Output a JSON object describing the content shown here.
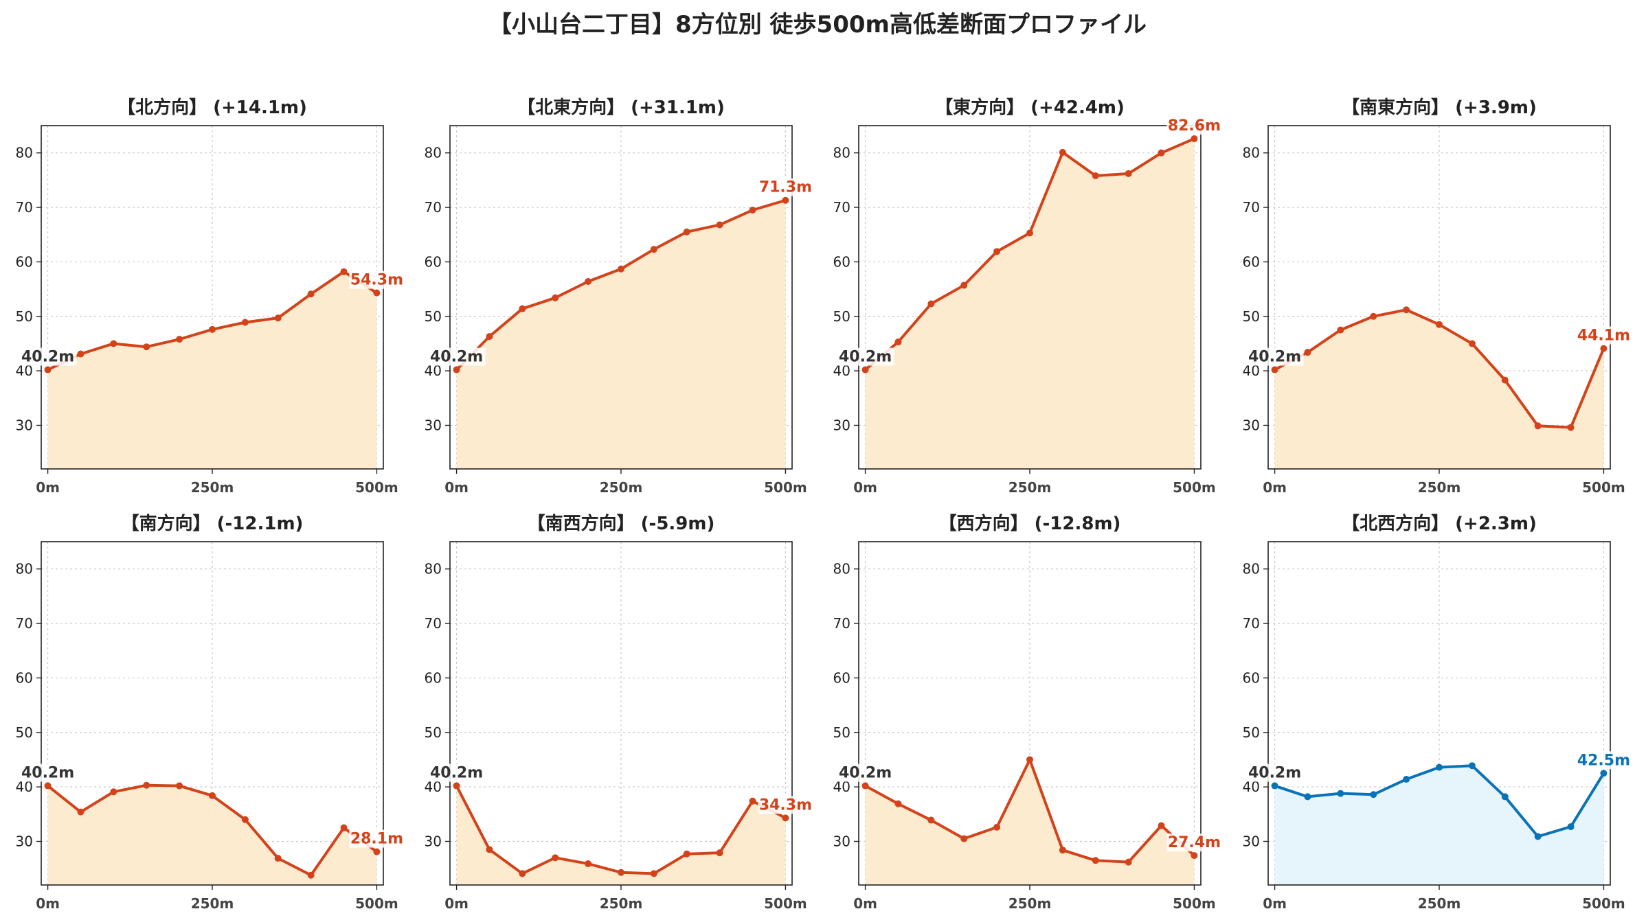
{
  "title": "【小山台二丁目】8方位別 徒歩500m高低差断面プロファイル",
  "colors": {
    "up_line": "#d4421a",
    "up_fill": "#fdebd0",
    "down_line": "#0a73b8",
    "down_fill": "#e6f4fb",
    "start_label": "#333333"
  },
  "chart_data": [
    {
      "type": "area",
      "title": "【北方向】 (+14.1m)",
      "theme": "up",
      "x": [
        0,
        50,
        100,
        150,
        200,
        250,
        300,
        350,
        400,
        450,
        500
      ],
      "y": [
        40.2,
        43.1,
        45.0,
        44.4,
        45.8,
        47.6,
        48.9,
        49.7,
        54.1,
        58.2,
        54.3
      ],
      "start_label": "40.2m",
      "end_label": "54.3m",
      "xticks": [
        0,
        250,
        500
      ],
      "xtick_labels": [
        "0m",
        "250m",
        "500m"
      ],
      "yticks": [
        30,
        40,
        50,
        60,
        70,
        80
      ],
      "xlim": [
        -10,
        510
      ],
      "ylim": [
        22,
        85
      ],
      "grid": true
    },
    {
      "type": "area",
      "title": "【北東方向】 (+31.1m)",
      "theme": "up",
      "x": [
        0,
        50,
        100,
        150,
        200,
        250,
        300,
        350,
        400,
        450,
        500
      ],
      "y": [
        40.2,
        46.3,
        51.4,
        53.4,
        56.4,
        58.7,
        62.3,
        65.5,
        66.8,
        69.5,
        71.3
      ],
      "start_label": "40.2m",
      "end_label": "71.3m",
      "xticks": [
        0,
        250,
        500
      ],
      "xtick_labels": [
        "0m",
        "250m",
        "500m"
      ],
      "yticks": [
        30,
        40,
        50,
        60,
        70,
        80
      ],
      "xlim": [
        -10,
        510
      ],
      "ylim": [
        22,
        85
      ],
      "grid": true
    },
    {
      "type": "area",
      "title": "【東方向】 (+42.4m)",
      "theme": "up",
      "x": [
        0,
        50,
        100,
        150,
        200,
        250,
        300,
        350,
        400,
        450,
        500
      ],
      "y": [
        40.2,
        45.3,
        52.3,
        55.7,
        61.9,
        65.3,
        80.1,
        75.8,
        76.2,
        80.0,
        82.6
      ],
      "start_label": "40.2m",
      "end_label": "82.6m",
      "xticks": [
        0,
        250,
        500
      ],
      "xtick_labels": [
        "0m",
        "250m",
        "500m"
      ],
      "yticks": [
        30,
        40,
        50,
        60,
        70,
        80
      ],
      "xlim": [
        -10,
        510
      ],
      "ylim": [
        22,
        85
      ],
      "grid": true
    },
    {
      "type": "area",
      "title": "【南東方向】 (+3.9m)",
      "theme": "up",
      "x": [
        0,
        50,
        100,
        150,
        200,
        250,
        300,
        350,
        400,
        450,
        500
      ],
      "y": [
        40.2,
        43.4,
        47.5,
        50.0,
        51.2,
        48.5,
        45.0,
        38.3,
        29.9,
        29.6,
        44.1
      ],
      "start_label": "40.2m",
      "end_label": "44.1m",
      "xticks": [
        0,
        250,
        500
      ],
      "xtick_labels": [
        "0m",
        "250m",
        "500m"
      ],
      "yticks": [
        30,
        40,
        50,
        60,
        70,
        80
      ],
      "xlim": [
        -10,
        510
      ],
      "ylim": [
        22,
        85
      ],
      "grid": true
    },
    {
      "type": "area",
      "title": "【南方向】 (-12.1m)",
      "theme": "up",
      "x": [
        0,
        50,
        100,
        150,
        200,
        250,
        300,
        350,
        400,
        450,
        500
      ],
      "y": [
        40.2,
        35.4,
        39.1,
        40.3,
        40.2,
        38.4,
        34.0,
        26.9,
        23.8,
        32.5,
        28.1
      ],
      "start_label": "40.2m",
      "end_label": "28.1m",
      "xticks": [
        0,
        250,
        500
      ],
      "xtick_labels": [
        "0m",
        "250m",
        "500m"
      ],
      "yticks": [
        30,
        40,
        50,
        60,
        70,
        80
      ],
      "xlim": [
        -10,
        510
      ],
      "ylim": [
        22,
        85
      ],
      "grid": true
    },
    {
      "type": "area",
      "title": "【南西方向】 (-5.9m)",
      "theme": "up",
      "x": [
        0,
        50,
        100,
        150,
        200,
        250,
        300,
        350,
        400,
        450,
        500
      ],
      "y": [
        40.2,
        28.5,
        24.1,
        27.0,
        25.9,
        24.3,
        24.1,
        27.7,
        27.9,
        37.4,
        34.3
      ],
      "start_label": "40.2m",
      "end_label": "34.3m",
      "xticks": [
        0,
        250,
        500
      ],
      "xtick_labels": [
        "0m",
        "250m",
        "500m"
      ],
      "yticks": [
        30,
        40,
        50,
        60,
        70,
        80
      ],
      "xlim": [
        -10,
        510
      ],
      "ylim": [
        22,
        85
      ],
      "grid": true
    },
    {
      "type": "area",
      "title": "【西方向】 (-12.8m)",
      "theme": "up",
      "x": [
        0,
        50,
        100,
        150,
        200,
        250,
        300,
        350,
        400,
        450,
        500
      ],
      "y": [
        40.2,
        36.9,
        33.9,
        30.5,
        32.6,
        45.0,
        28.4,
        26.5,
        26.2,
        32.9,
        27.4
      ],
      "start_label": "40.2m",
      "end_label": "27.4m",
      "xticks": [
        0,
        250,
        500
      ],
      "xtick_labels": [
        "0m",
        "250m",
        "500m"
      ],
      "yticks": [
        30,
        40,
        50,
        60,
        70,
        80
      ],
      "xlim": [
        -10,
        510
      ],
      "ylim": [
        22,
        85
      ],
      "grid": true
    },
    {
      "type": "area",
      "title": "【北西方向】 (+2.3m)",
      "theme": "down",
      "x": [
        0,
        50,
        100,
        150,
        200,
        250,
        300,
        350,
        400,
        450,
        500
      ],
      "y": [
        40.2,
        38.2,
        38.8,
        38.6,
        41.4,
        43.6,
        43.9,
        38.2,
        30.9,
        32.7,
        42.5
      ],
      "start_label": "40.2m",
      "end_label": "42.5m",
      "xticks": [
        0,
        250,
        500
      ],
      "xtick_labels": [
        "0m",
        "250m",
        "500m"
      ],
      "yticks": [
        30,
        40,
        50,
        60,
        70,
        80
      ],
      "xlim": [
        -10,
        510
      ],
      "ylim": [
        22,
        85
      ],
      "grid": true
    }
  ]
}
